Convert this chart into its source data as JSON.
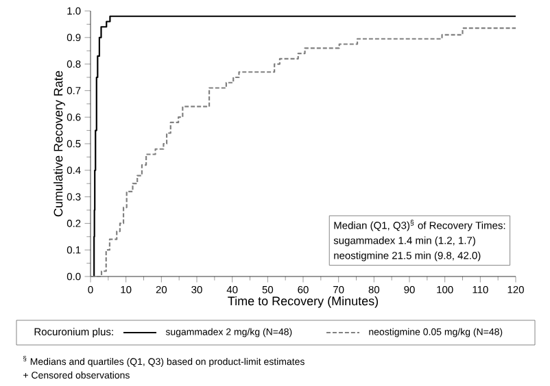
{
  "chart_data": {
    "type": "step",
    "xlabel": "Time to Recovery (Minutes)",
    "ylabel": "Cumulative Recovery Rate",
    "legend_title": "Rocuronium plus:",
    "series": [
      {
        "name": "sugammadex 2 mg/kg (N=48)",
        "color": "#000000",
        "line_style": "solid",
        "x": [
          0,
          0.8,
          1.0,
          1.1,
          1.2,
          1.4,
          1.7,
          2.0,
          2.5,
          3.0,
          4.5,
          5.5,
          120
        ],
        "values": [
          0,
          0,
          0.15,
          0.25,
          0.4,
          0.55,
          0.75,
          0.83,
          0.9,
          0.94,
          0.96,
          0.98,
          0.98
        ]
      },
      {
        "name": "neostigmine 0.05 mg/kg (N=48)",
        "color": "#808080",
        "line_style": "dashed",
        "x": [
          0,
          3.1,
          4.4,
          5.4,
          7.4,
          8.3,
          9.3,
          10.2,
          11.9,
          13.2,
          14.5,
          15.7,
          18.3,
          20.6,
          21.5,
          22.6,
          24.8,
          26,
          33.5,
          38.3,
          40.3,
          41.9,
          51.9,
          53.4,
          58.6,
          60.5,
          70.2,
          75.3,
          99.2,
          105,
          120
        ],
        "values": [
          0,
          0.02,
          0.1,
          0.14,
          0.17,
          0.2,
          0.26,
          0.32,
          0.35,
          0.38,
          0.42,
          0.46,
          0.48,
          0.5,
          0.54,
          0.58,
          0.6,
          0.64,
          0.71,
          0.73,
          0.75,
          0.77,
          0.8,
          0.82,
          0.84,
          0.86,
          0.875,
          0.895,
          0.91,
          0.935,
          0.935
        ]
      }
    ],
    "xlim": [
      0,
      120
    ],
    "xticks": [
      0,
      10,
      20,
      30,
      40,
      50,
      60,
      70,
      80,
      90,
      100,
      110,
      120
    ],
    "ylim": [
      0,
      1
    ],
    "yticks": [
      {
        "value": 0,
        "label": "0.0"
      },
      {
        "value": 0.1,
        "label": "0.1"
      },
      {
        "value": 0.2,
        "label": "0.2"
      },
      {
        "value": 0.3,
        "label": "0.3"
      },
      {
        "value": 0.4,
        "label": "0.4"
      },
      {
        "value": 0.5,
        "label": "0.5"
      },
      {
        "value": 0.6,
        "label": "0.6"
      },
      {
        "value": 0.7,
        "label": "0.7"
      },
      {
        "value": 0.8,
        "label": "0.8"
      },
      {
        "value": 0.9,
        "label": "0.9"
      },
      {
        "value": 1,
        "label": "1.0"
      }
    ],
    "legend": "bottom",
    "grid": false,
    "annotations": [
      "Median (Q1, Q3)$^{§}$ of Recovery Times:",
      "sugammadex 1.4 min (1.2, 1.7)",
      "neostigmine 21.5 min (9.8, 42.0)",
      "$^{§}$ Medians and quartiles (Q1, Q3) based on product-limit estimates",
      "+ Censored observations"
    ]
  }
}
